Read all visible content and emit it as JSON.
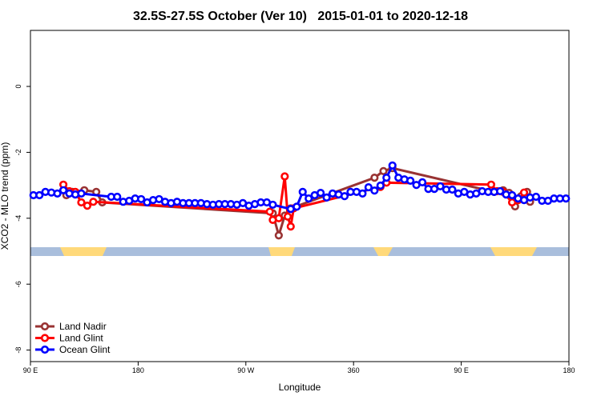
{
  "chart_data": {
    "type": "line",
    "title": "32.5S-27.5S October (Ver 10)   2015-01-01 to 2020-12-18",
    "x_label": "Longitude",
    "y_label": "XCO2 - MLO trend (ppm)",
    "xlim": [
      90,
      540
    ],
    "ylim": [
      -8.35,
      1.7
    ],
    "xticks": [
      {
        "value": 90,
        "label": "90 E"
      },
      180,
      {
        "value": 270,
        "label": "90 W"
      },
      360,
      {
        "value": 450,
        "label": "90 E"
      },
      {
        "value": 540,
        "label": "180"
      }
    ],
    "yticks": [
      0,
      -2,
      -4,
      -6,
      -8
    ],
    "legend": "bottom-left",
    "series": [
      {
        "name": "Land Nadir",
        "color": "#993333",
        "x": [
          120,
          125,
          135,
          145,
          150,
          292.5,
          297.5,
          302.5,
          307.5,
          377.5,
          385,
          392.5,
          477.5,
          485,
          490,
          495,
          500,
          505,
          507.5
        ],
        "values": [
          -3.3,
          -3.2,
          -3.15,
          -3.2,
          -3.52,
          -3.85,
          -4.52,
          -3.92,
          -3.7,
          -2.77,
          -2.57,
          -2.48,
          -3.2,
          -3.15,
          -3.23,
          -3.64,
          -3.33,
          -3.2,
          -3.5
        ]
      },
      {
        "name": "Land Glint",
        "color": "#ff0000",
        "x": [
          117.5,
          122.5,
          127.5,
          132.5,
          137.5,
          142.5,
          290,
          292.5,
          297.5,
          302.5,
          305,
          307.5,
          310,
          382.5,
          387.5,
          475,
          480,
          485,
          492.5,
          497.5,
          502.5
        ],
        "values": [
          -2.98,
          -3.18,
          -3.2,
          -3.52,
          -3.62,
          -3.5,
          -3.8,
          -4.05,
          -4.0,
          -2.73,
          -3.95,
          -4.25,
          -3.7,
          -3.05,
          -2.92,
          -2.98,
          -3.18,
          -3.2,
          -3.52,
          -3.45,
          -3.22
        ]
      },
      {
        "name": "Ocean Glint",
        "color": "#0000ff",
        "x": [
          92.5,
          97.5,
          102.5,
          107.5,
          112.5,
          117.5,
          122.5,
          127.5,
          132.5,
          157.5,
          162.5,
          167.5,
          172.5,
          177.5,
          182.5,
          187.5,
          192.5,
          197.5,
          202.5,
          207.5,
          212.5,
          217.5,
          222.5,
          227.5,
          232.5,
          237.5,
          242.5,
          247.5,
          252.5,
          257.5,
          262.5,
          267.5,
          272.5,
          277.5,
          282.5,
          287.5,
          292.5,
          307.5,
          312.5,
          317.5,
          322.5,
          327.5,
          332.5,
          337.5,
          342.5,
          347.5,
          352.5,
          357.5,
          362.5,
          367.5,
          372.5,
          377.5,
          382.5,
          387.5,
          392.5,
          397.5,
          402.5,
          407.5,
          412.5,
          417.5,
          422.5,
          427.5,
          432.5,
          437.5,
          442.5,
          447.5,
          452.5,
          457.5,
          462.5,
          467.5,
          472.5,
          477.5,
          482.5,
          487.5,
          492.5,
          497.5,
          502.5,
          507.5,
          512.5,
          517.5,
          522.5,
          527.5,
          532.5,
          537.5
        ],
        "values": [
          -3.3,
          -3.3,
          -3.2,
          -3.22,
          -3.25,
          -3.15,
          -3.25,
          -3.28,
          -3.25,
          -3.35,
          -3.35,
          -3.5,
          -3.47,
          -3.4,
          -3.42,
          -3.52,
          -3.45,
          -3.42,
          -3.5,
          -3.54,
          -3.5,
          -3.54,
          -3.54,
          -3.54,
          -3.54,
          -3.57,
          -3.59,
          -3.57,
          -3.57,
          -3.57,
          -3.59,
          -3.54,
          -3.62,
          -3.57,
          -3.52,
          -3.52,
          -3.59,
          -3.72,
          -3.65,
          -3.2,
          -3.4,
          -3.3,
          -3.23,
          -3.37,
          -3.25,
          -3.28,
          -3.33,
          -3.2,
          -3.2,
          -3.25,
          -3.06,
          -3.16,
          -3.01,
          -2.77,
          -2.4,
          -2.77,
          -2.82,
          -2.86,
          -2.99,
          -2.91,
          -3.11,
          -3.11,
          -3.03,
          -3.13,
          -3.13,
          -3.25,
          -3.2,
          -3.28,
          -3.25,
          -3.18,
          -3.2,
          -3.2,
          -3.18,
          -3.28,
          -3.3,
          -3.4,
          -3.45,
          -3.37,
          -3.35,
          -3.47,
          -3.47,
          -3.4,
          -3.4,
          -3.4
        ]
      }
    ]
  }
}
